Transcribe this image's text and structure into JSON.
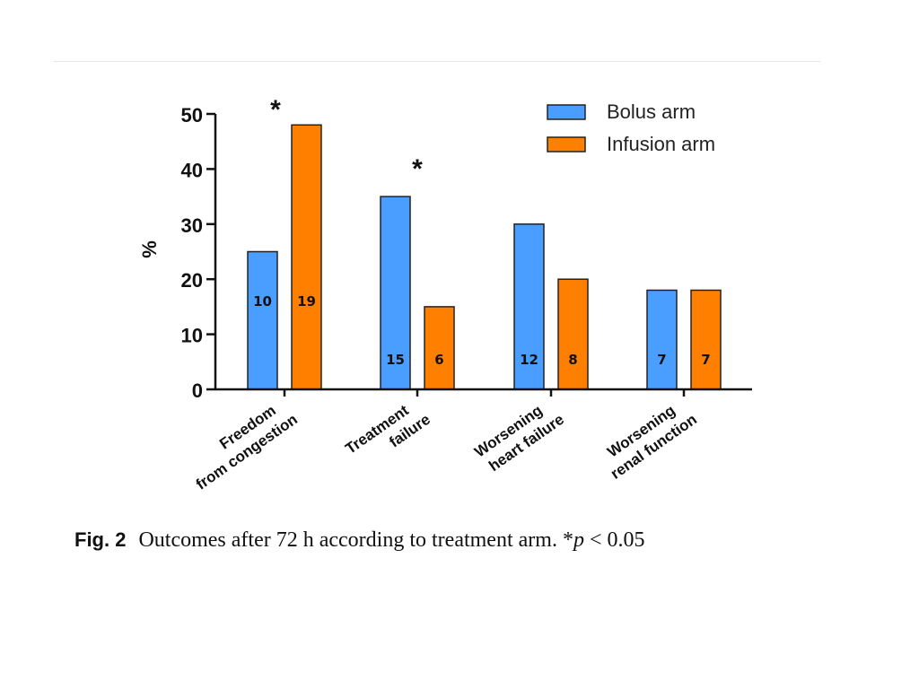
{
  "chart_data": {
    "type": "bar",
    "ylabel": "%",
    "xlabel": "",
    "ylim": [
      0,
      50
    ],
    "yticks": [
      0,
      10,
      20,
      30,
      40,
      50
    ],
    "categories": [
      [
        "Freedom",
        "from congestion"
      ],
      [
        "Treatment",
        "failure"
      ],
      [
        "Worsening",
        "heart failure"
      ],
      [
        "Worsening",
        "renal function"
      ]
    ],
    "series": [
      {
        "name": "Bolus arm",
        "color": "#4a9eff",
        "values": [
          25,
          35,
          30,
          18
        ],
        "counts": [
          "10",
          "15",
          "12",
          "7"
        ]
      },
      {
        "name": "Infusion arm",
        "color": "#ff8000",
        "values": [
          48,
          15,
          20,
          18
        ],
        "counts": [
          "19",
          "6",
          "8",
          "7"
        ]
      }
    ],
    "significance_marks": [
      "*",
      "*",
      "",
      ""
    ],
    "legend_position": "top-right"
  },
  "caption": {
    "label": "Fig. 2",
    "text": "Outcomes after 72 h according to treatment arm. *",
    "p_symbol": "p",
    "threshold": " < 0.05"
  }
}
